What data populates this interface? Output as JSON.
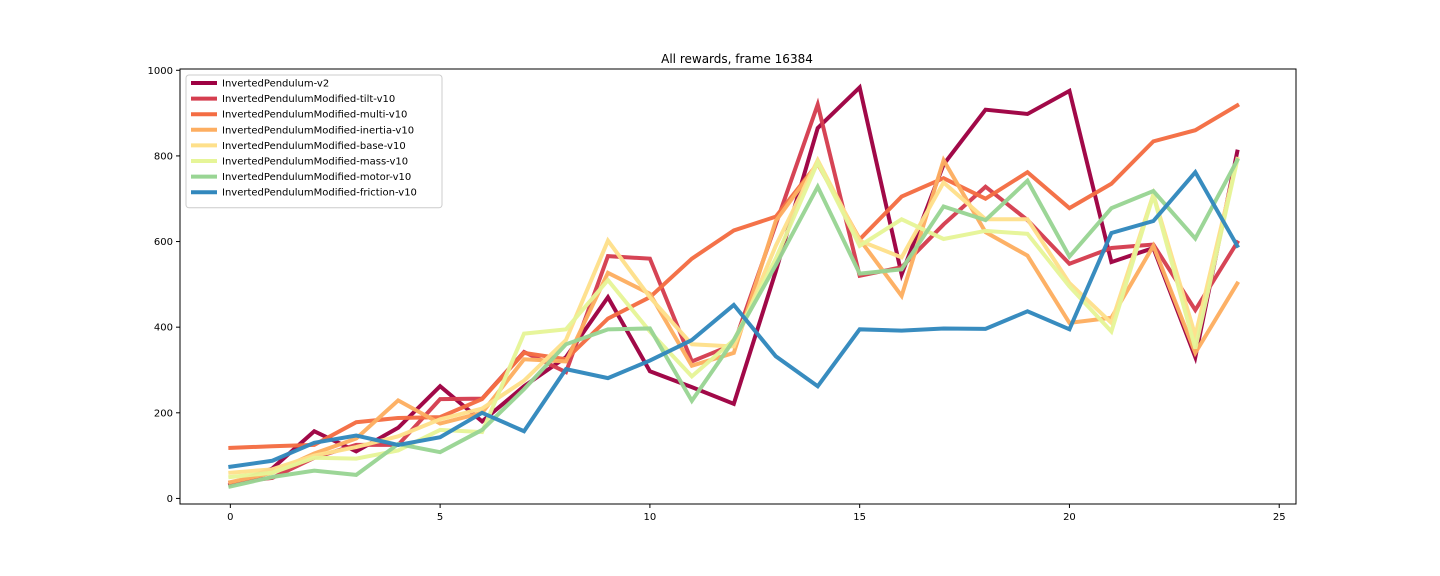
{
  "chart_data": {
    "type": "line",
    "title": "All rewards, frame 16384",
    "xlabel": "",
    "ylabel": "",
    "xlim": [
      -1.2,
      25.4
    ],
    "ylim": [
      -13,
      1003
    ],
    "xticks": [
      0,
      5,
      10,
      15,
      20,
      25
    ],
    "yticks": [
      0,
      200,
      400,
      600,
      800,
      1000
    ],
    "grid": false,
    "legend_position": "top-left",
    "x": [
      0,
      1,
      2,
      3,
      4,
      5,
      6,
      7,
      8,
      9,
      10,
      11,
      12,
      13,
      14,
      15,
      16,
      17,
      18,
      19,
      20,
      21,
      22,
      23,
      24
    ],
    "series": [
      {
        "name": "InvertedPendulum-v2",
        "color": "#9e0142",
        "values": [
          32,
          70,
          157,
          110,
          165,
          262,
          180,
          262,
          330,
          470,
          297,
          260,
          221,
          530,
          865,
          960,
          523,
          780,
          908,
          898,
          952,
          552,
          585,
          330,
          810
        ]
      },
      {
        "name": "InvertedPendulumModified-tilt-v10",
        "color": "#d53e4f",
        "values": [
          37,
          48,
          95,
          125,
          125,
          232,
          233,
          342,
          295,
          566,
          560,
          320,
          360,
          640,
          920,
          520,
          540,
          640,
          728,
          650,
          548,
          585,
          593,
          440,
          598
        ]
      },
      {
        "name": "InvertedPendulumModified-multi-v10",
        "color": "#f46d43",
        "values": [
          118,
          122,
          125,
          178,
          188,
          190,
          232,
          340,
          325,
          420,
          470,
          560,
          626,
          658,
          782,
          605,
          705,
          748,
          700,
          762,
          678,
          735,
          834,
          860,
          918
        ]
      },
      {
        "name": "InvertedPendulumModified-inertia-v10",
        "color": "#fdae61",
        "values": [
          38,
          60,
          105,
          140,
          229,
          175,
          200,
          325,
          320,
          527,
          478,
          310,
          340,
          648,
          782,
          605,
          473,
          790,
          622,
          567,
          410,
          422,
          590,
          340,
          502
        ]
      },
      {
        "name": "InvertedPendulumModified-base-v10",
        "color": "#fee08b",
        "values": [
          60,
          68,
          100,
          120,
          145,
          185,
          210,
          275,
          370,
          602,
          470,
          360,
          355,
          590,
          790,
          602,
          563,
          738,
          652,
          652,
          503,
          410,
          710,
          380,
          793
        ]
      },
      {
        "name": "InvertedPendulumModified-mass-v10",
        "color": "#e6f598",
        "values": [
          50,
          60,
          95,
          93,
          112,
          160,
          155,
          385,
          395,
          510,
          390,
          285,
          370,
          560,
          785,
          590,
          652,
          606,
          625,
          618,
          495,
          390,
          708,
          350,
          790
        ]
      },
      {
        "name": "InvertedPendulumModified-motor-v10",
        "color": "#99d594",
        "values": [
          28,
          50,
          65,
          55,
          127,
          108,
          160,
          255,
          360,
          395,
          397,
          228,
          370,
          545,
          728,
          525,
          535,
          682,
          650,
          742,
          565,
          678,
          718,
          607,
          790
        ]
      },
      {
        "name": "InvertedPendulumModified-friction-v10",
        "color": "#3288bd",
        "values": [
          74,
          88,
          130,
          147,
          125,
          143,
          200,
          157,
          302,
          281,
          322,
          370,
          452,
          332,
          262,
          395,
          392,
          397,
          396,
          437,
          395,
          620,
          648,
          762,
          590
        ]
      }
    ]
  }
}
